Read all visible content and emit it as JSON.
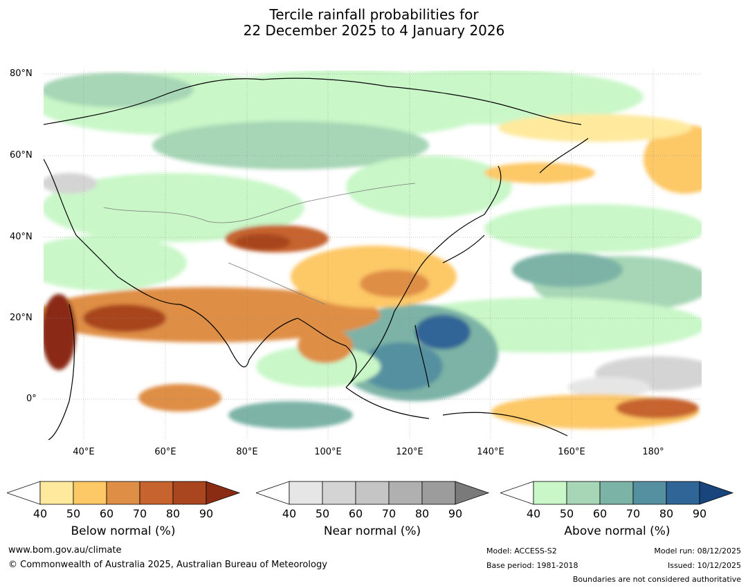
{
  "title": {
    "line1": "Tercile rainfall probabilities for",
    "line2": "22 December 2025 to 4 January 2026"
  },
  "lat_labels": [
    "80°N",
    "60°N",
    "40°N",
    "20°N",
    "0°"
  ],
  "lon_labels": [
    "40°E",
    "60°E",
    "80°E",
    "100°E",
    "120°E",
    "140°E",
    "160°E",
    "180°"
  ],
  "colorbars": [
    {
      "label": "Below normal (%)",
      "ticks": [
        "40",
        "50",
        "60",
        "70",
        "80",
        "90"
      ],
      "colors": [
        "#ffffff",
        "#fee99c",
        "#fdc866",
        "#df8e45",
        "#c6632f",
        "#a9451f",
        "#8a2c14"
      ]
    },
    {
      "label": "Near normal (%)",
      "ticks": [
        "40",
        "50",
        "60",
        "70",
        "80",
        "90"
      ],
      "colors": [
        "#ffffff",
        "#e6e6e6",
        "#d4d4d4",
        "#c5c5c5",
        "#b0b0b0",
        "#9c9c9c",
        "#7a7a7a"
      ]
    },
    {
      "label": "Above normal (%)",
      "ticks": [
        "40",
        "50",
        "60",
        "70",
        "80",
        "90"
      ],
      "colors": [
        "#ffffff",
        "#c9f7c8",
        "#a6d6b5",
        "#7bb3a6",
        "#5590a0",
        "#306597",
        "#18457c"
      ]
    }
  ],
  "footer": {
    "website": "www.bom.gov.au/climate",
    "copyright": "© Commonwealth of Australia 2025, Australian Bureau of Meteorology",
    "model": "Model: ACCESS-S2",
    "base_period": "Base period: 1981-2018",
    "model_run": "Model run: 08/12/2025",
    "issued": "Issued: 10/12/2025",
    "disclaimer": "Boundaries are not considered authoritative"
  }
}
